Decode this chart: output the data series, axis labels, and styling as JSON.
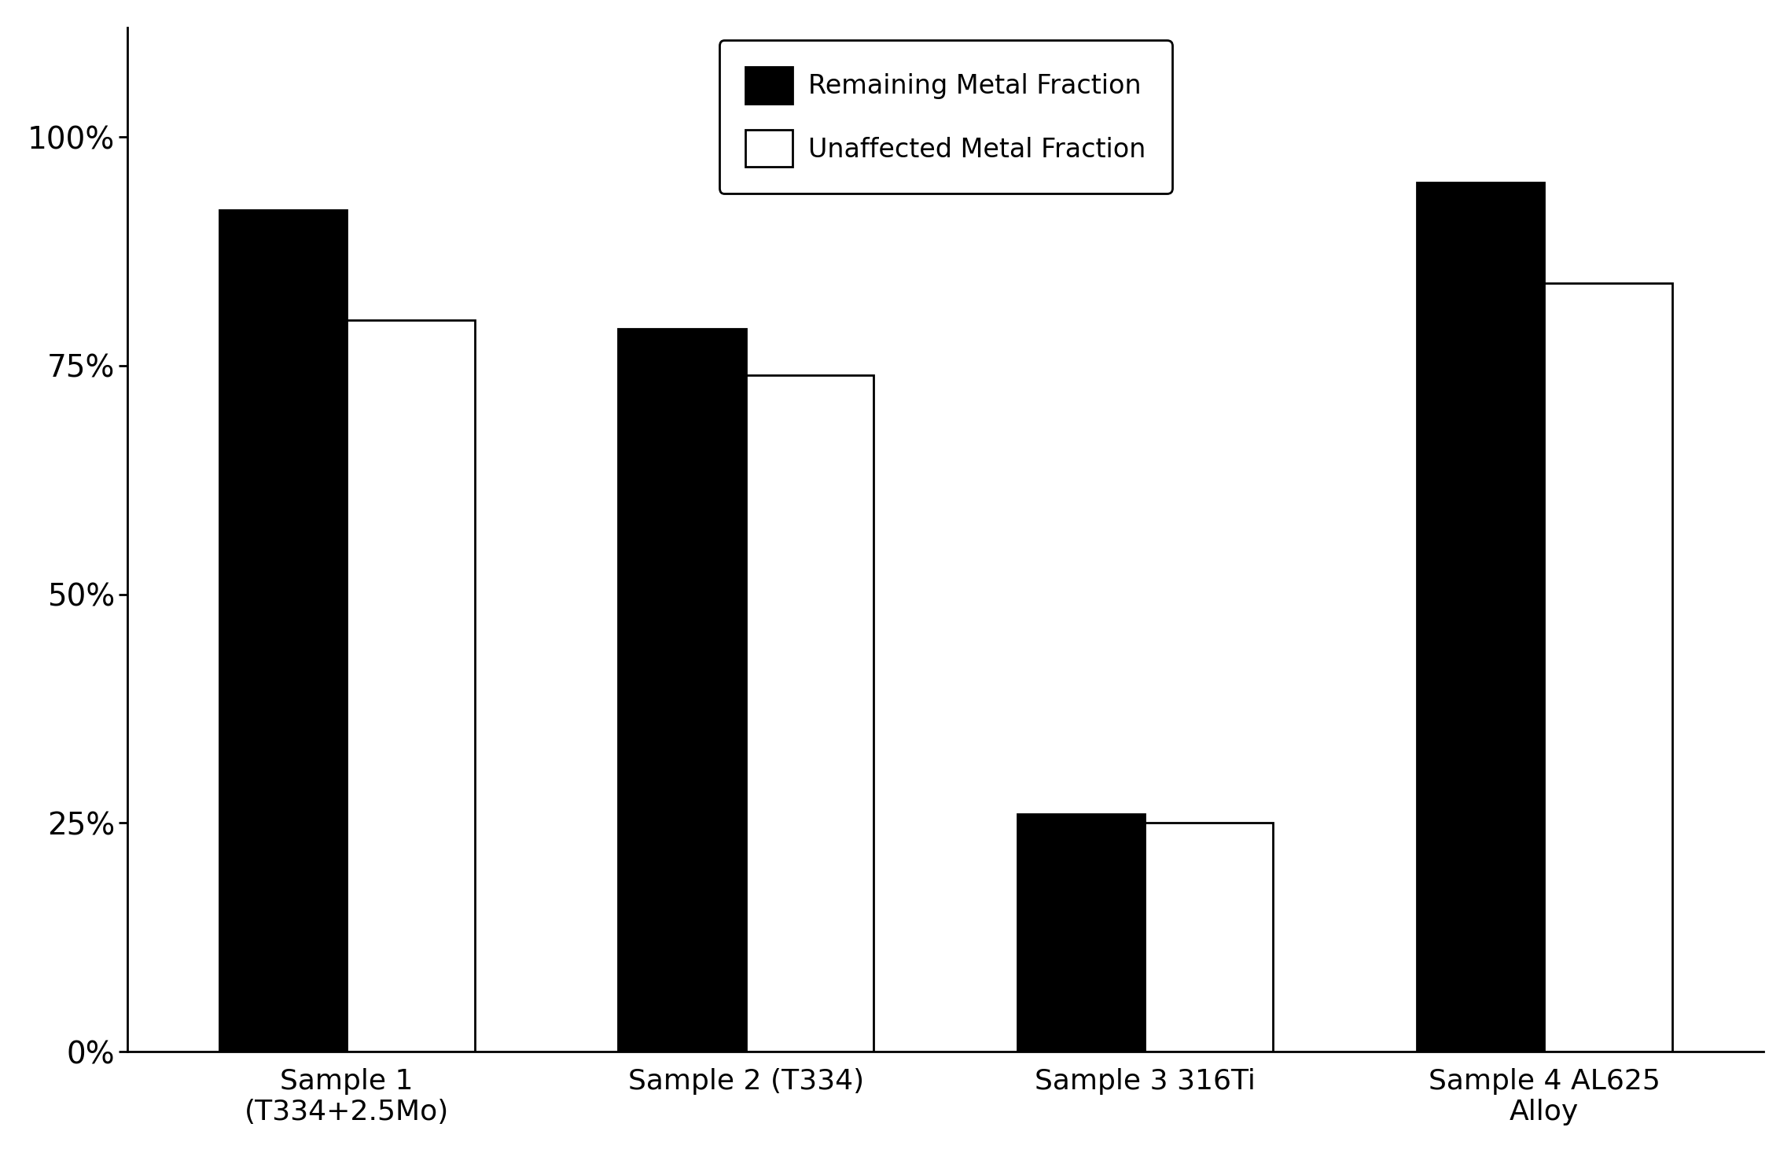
{
  "categories": [
    "Sample 1\n(T334+2.5Mo)",
    "Sample 2 (T334)",
    "Sample 3 316Ti",
    "Sample 4 AL625\nAlloy"
  ],
  "remaining": [
    0.92,
    0.79,
    0.26,
    0.95
  ],
  "unaffected": [
    0.8,
    0.74,
    0.25,
    0.84
  ],
  "bar_color_remaining": "#000000",
  "bar_color_unaffected": "#ffffff",
  "bar_edgecolor": "#000000",
  "yticks": [
    0.0,
    0.25,
    0.5,
    0.75,
    1.0
  ],
  "yticklabels": [
    "0%",
    "25%",
    "50%",
    "75%",
    "100%"
  ],
  "ylim": [
    0,
    1.12
  ],
  "legend_labels": [
    "Remaining Metal Fraction",
    "Unaffected Metal Fraction"
  ],
  "background_color": "#ffffff",
  "bar_width": 0.32,
  "tick_fontsize": 28,
  "legend_fontsize": 24,
  "xtick_fontsize": 26,
  "linewidth": 2.0
}
